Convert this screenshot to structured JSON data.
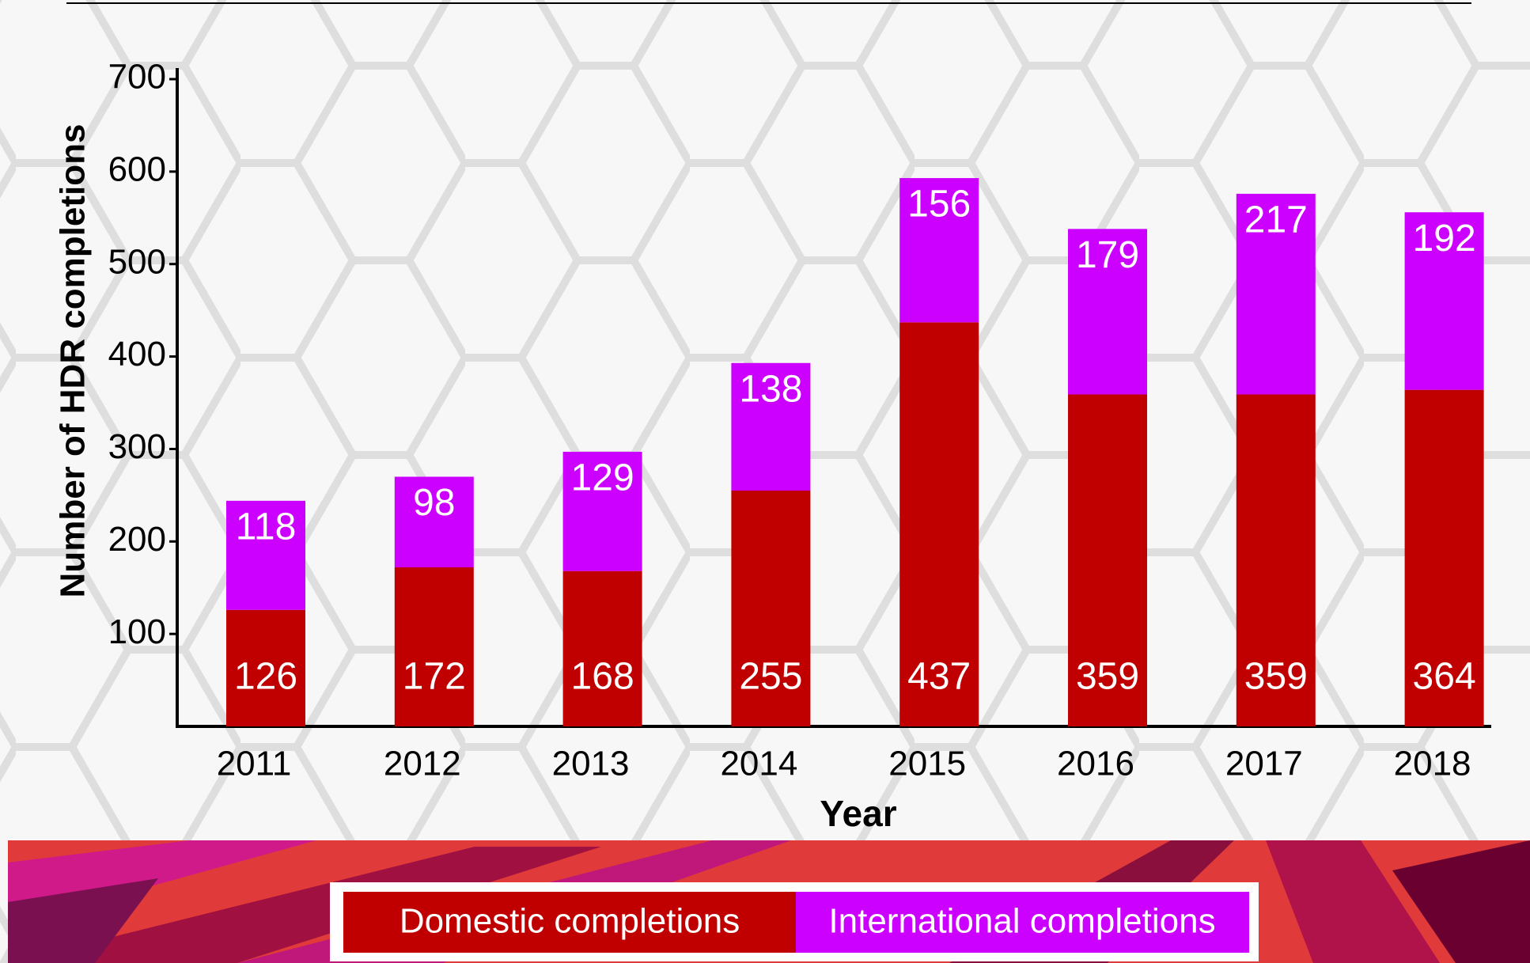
{
  "chart_data": {
    "type": "stacked_bar",
    "y_axis_label": "Number of HDR completions",
    "x_axis_label": "Year",
    "categories": [
      "2011",
      "2012",
      "2013",
      "2014",
      "2015",
      "2016",
      "2017",
      "2018"
    ],
    "series": [
      {
        "name": "Domestic completions",
        "color": "#c00000",
        "values": [
          126,
          172,
          168,
          255,
          437,
          359,
          359,
          364
        ]
      },
      {
        "name": "International completions",
        "color": "#cc00ff",
        "values": [
          118,
          98,
          129,
          138,
          156,
          179,
          217,
          192
        ]
      }
    ],
    "ylim": [
      0,
      700
    ],
    "yticks": [
      100,
      200,
      300,
      400,
      500,
      600,
      700
    ],
    "legend": "bottom"
  }
}
